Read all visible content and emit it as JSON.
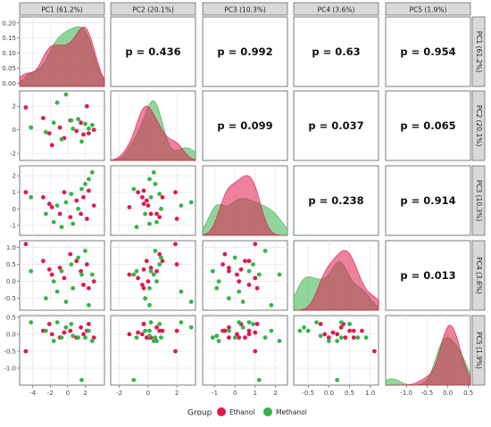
{
  "chart_data": {
    "type": "pairs",
    "variables": [
      "PC1 (61.2%)",
      "PC2 (20.1%)",
      "PC3 (10.3%)",
      "PC4 (3.6%)",
      "PC5 (1.9%)"
    ],
    "axes": [
      {
        "range": [
          -5.5,
          4.2
        ],
        "ticks": [
          -4,
          -2,
          0,
          2
        ]
      },
      {
        "range": [
          -2.6,
          3.3
        ],
        "ticks": [
          -2,
          0,
          2
        ]
      },
      {
        "range": [
          -1.6,
          2.6
        ],
        "ticks": [
          -1,
          0,
          1,
          2
        ]
      },
      {
        "range": [
          -0.85,
          1.2
        ],
        "ticks": [
          -0.5,
          0.0,
          0.5,
          1.0
        ]
      },
      {
        "range": [
          -1.5,
          0.55
        ],
        "ticks": [
          -1.0,
          -0.5,
          0.0,
          0.5
        ]
      }
    ],
    "density_axis": {
      "range": [
        -0.01,
        0.22
      ],
      "ticks": [
        0.0,
        0.05,
        0.1,
        0.15,
        0.2
      ]
    },
    "p_values": {
      "1-2": "p = 0.436",
      "1-3": "p = 0.992",
      "1-4": "p = 0.63",
      "1-5": "p = 0.954",
      "2-3": "p = 0.099",
      "2-4": "p = 0.037",
      "2-5": "p = 0.065",
      "3-4": "p = 0.238",
      "3-5": "p = 0.914",
      "4-5": "p = 0.013"
    },
    "series": [
      {
        "name": "Ethanol",
        "color": "#e0194f",
        "points": [
          [
            -4.8,
            1.9,
            1.0,
            1.1,
            -0.5
          ],
          [
            -2.8,
            1.0,
            0.7,
            0.6,
            0.1
          ],
          [
            -2.1,
            -0.3,
            0.3,
            0.35,
            0.3
          ],
          [
            -1.8,
            -1.3,
            0.1,
            0.2,
            0.0
          ],
          [
            -0.9,
            0.2,
            -0.3,
            0.4,
            -0.1
          ],
          [
            -0.4,
            -0.7,
            1.0,
            0.1,
            0.05
          ],
          [
            0.3,
            0.8,
            -0.5,
            0.8,
            0.1
          ],
          [
            1.0,
            -0.1,
            0.5,
            0.6,
            -0.1
          ],
          [
            1.5,
            0.6,
            -0.3,
            0.3,
            0.2
          ],
          [
            1.8,
            -0.4,
            0.7,
            -0.1,
            0.0
          ],
          [
            2.2,
            2.0,
            -0.6,
            0.5,
            0.1
          ],
          [
            2.4,
            -0.3,
            1.1,
            -0.2,
            0.3
          ],
          [
            3.0,
            0.0,
            0.2,
            0.0,
            -0.1
          ]
        ]
      },
      {
        "name": "Methanol",
        "color": "#37b34a",
        "points": [
          [
            -4.2,
            0.2,
            0.7,
            0.3,
            0.35
          ],
          [
            -2.5,
            -0.2,
            -0.3,
            -0.5,
            0.1
          ],
          [
            -1.6,
            0.6,
            -0.8,
            0.0,
            -0.2
          ],
          [
            -1.2,
            2.3,
            0.2,
            -0.3,
            0.35
          ],
          [
            -0.7,
            -0.8,
            -1.1,
            0.3,
            -0.1
          ],
          [
            -0.2,
            3.0,
            0.4,
            -0.6,
            0.2
          ],
          [
            0.4,
            0.8,
            0.9,
            0.5,
            0.3
          ],
          [
            0.6,
            0.1,
            -0.9,
            -0.2,
            -0.05
          ],
          [
            1.2,
            0.9,
            0.0,
            0.7,
            -0.1
          ],
          [
            1.6,
            -1.0,
            1.2,
            0.2,
            -1.35
          ],
          [
            2.0,
            0.5,
            1.5,
            0.9,
            -0.1
          ],
          [
            2.4,
            0.1,
            1.8,
            -0.7,
            0.1
          ],
          [
            2.8,
            0.4,
            2.2,
            0.2,
            -0.2
          ]
        ]
      }
    ],
    "legend": {
      "title": "Group",
      "position": "bottom",
      "entries": [
        "Ethanol",
        "Methanol"
      ]
    },
    "grid": true
  }
}
